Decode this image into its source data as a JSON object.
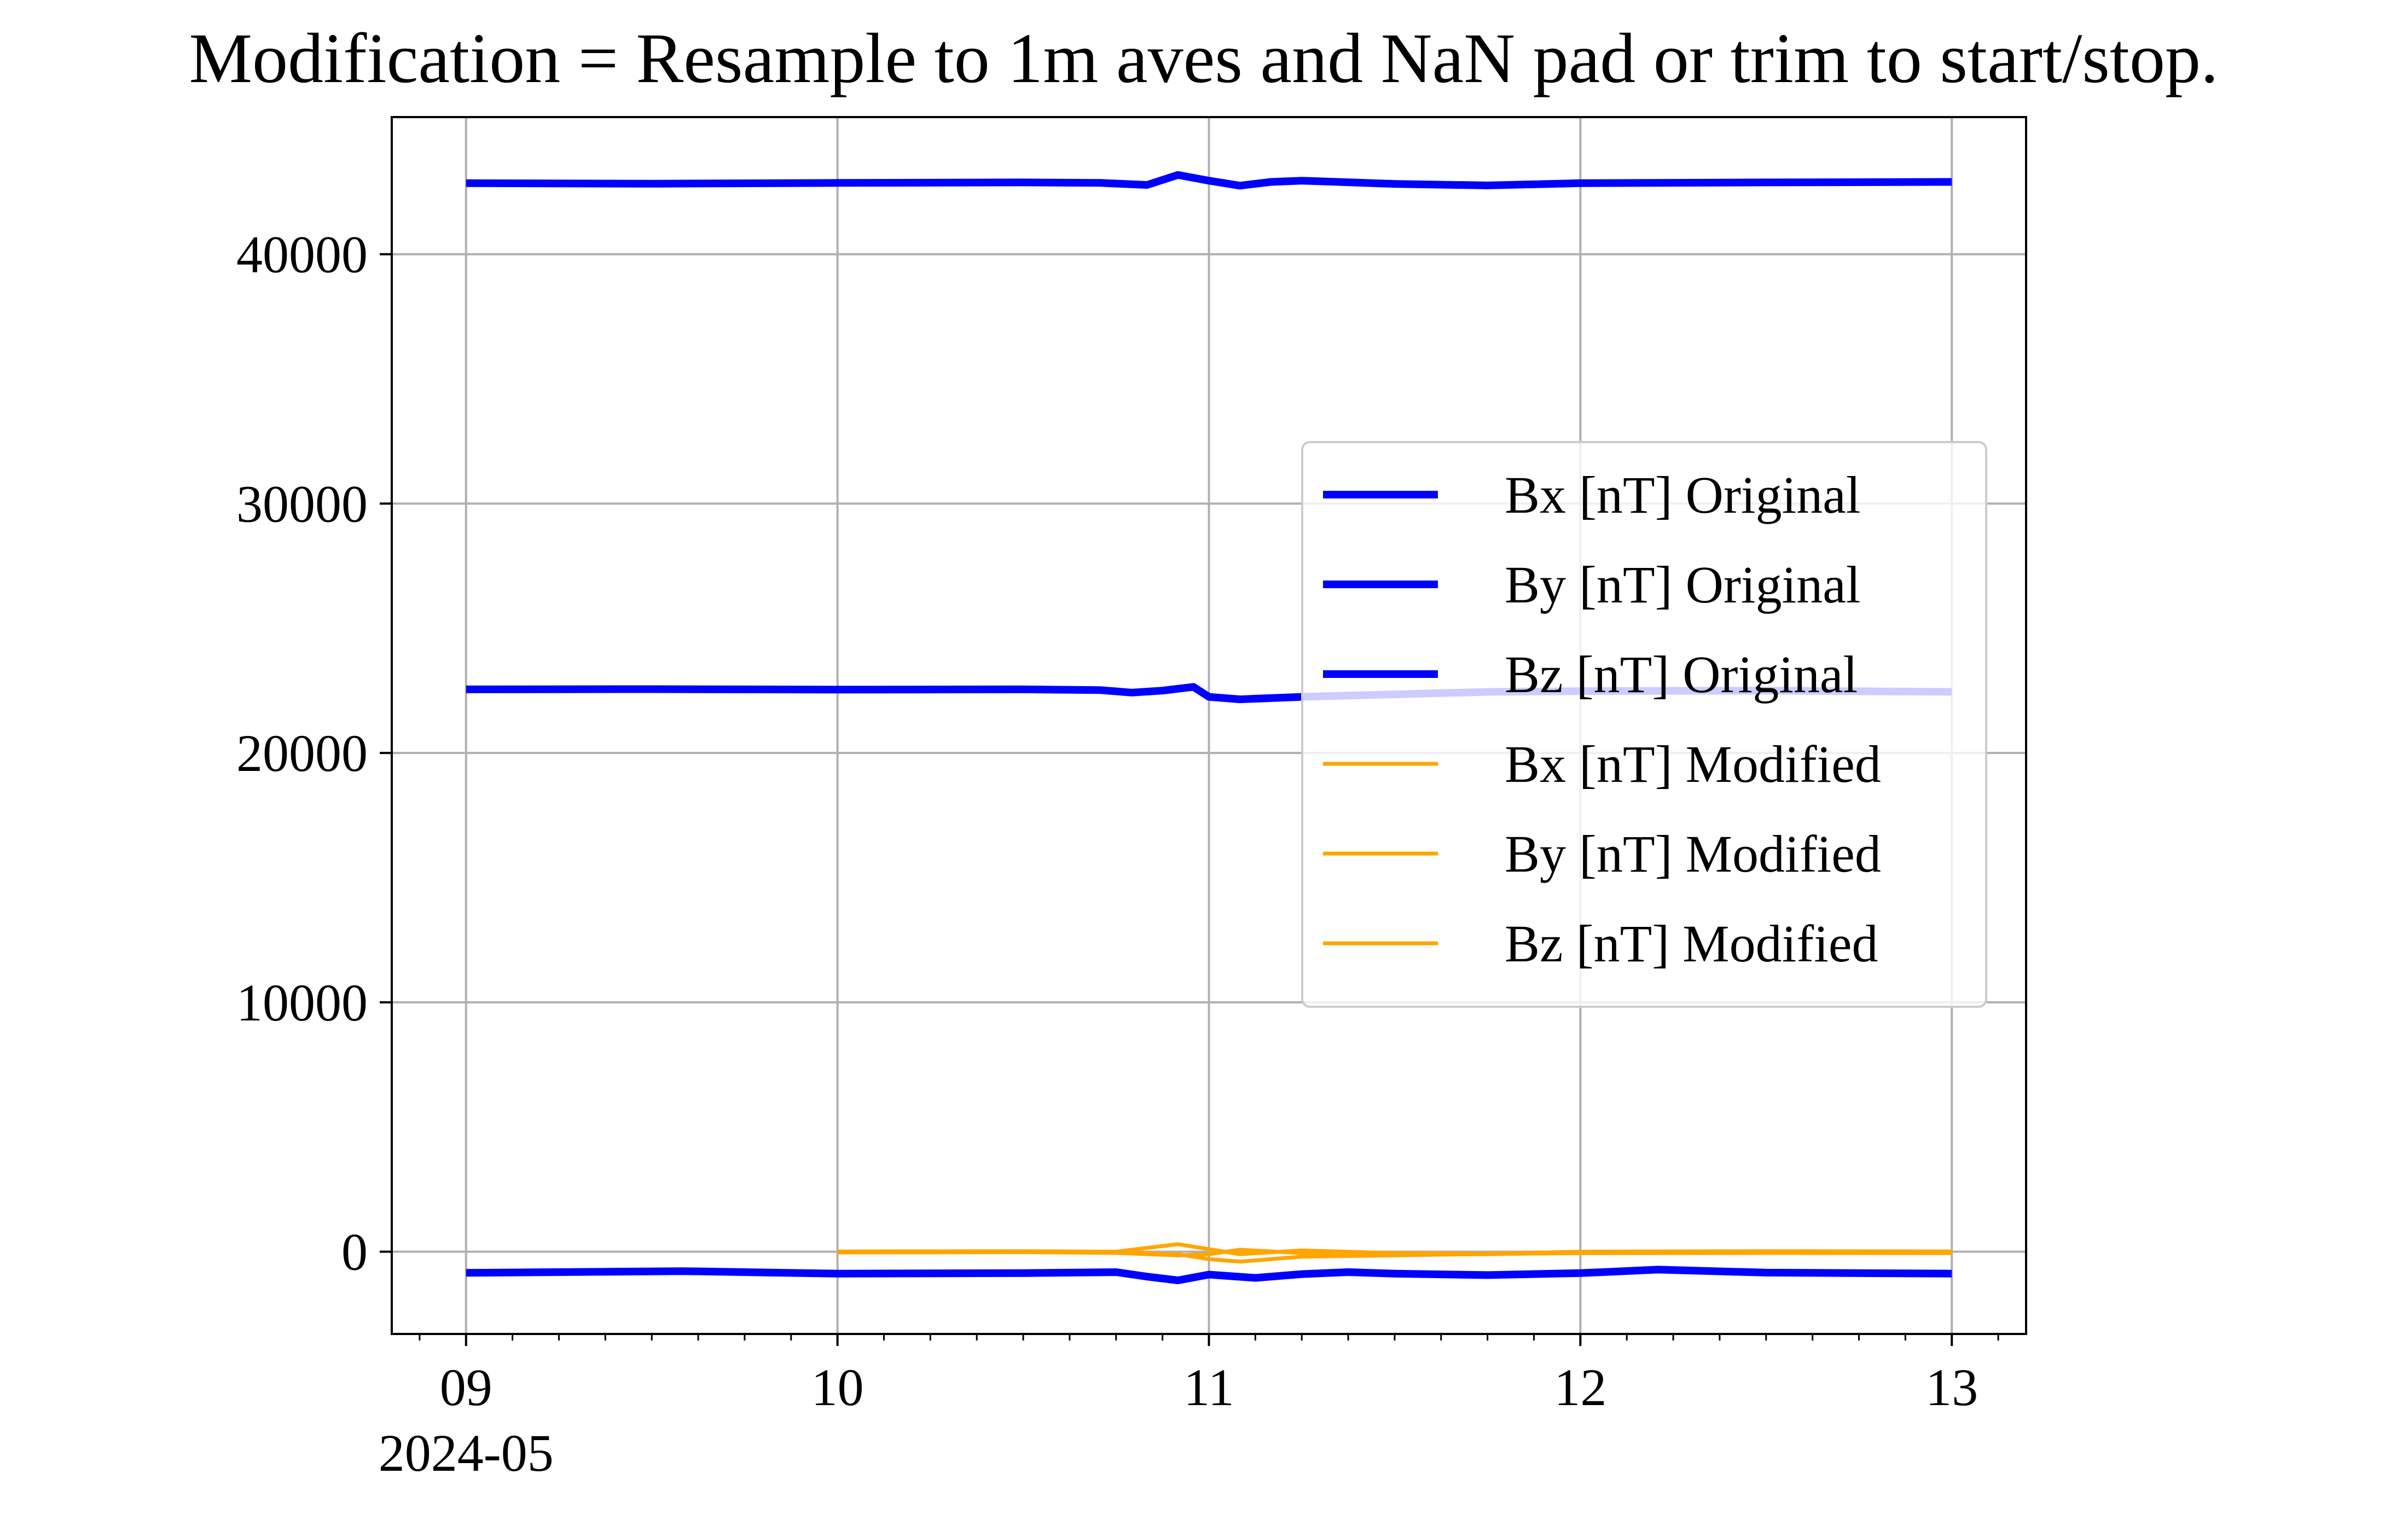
{
  "chart_data": {
    "type": "line",
    "title": "Modification = Resample to 1m aves and NaN pad or trim to start/stop.",
    "xlabel": "",
    "ylabel": "",
    "xlim": [
      "2024-05-08T19:12",
      "2024-05-13T04:48"
    ],
    "ylim": [
      -3300,
      45500
    ],
    "x_ticks": [
      {
        "value": "2024-05-09",
        "label": "09",
        "sublabel": "2024-05"
      },
      {
        "value": "2024-05-10",
        "label": "10",
        "sublabel": ""
      },
      {
        "value": "2024-05-11",
        "label": "11",
        "sublabel": ""
      },
      {
        "value": "2024-05-12",
        "label": "12",
        "sublabel": ""
      },
      {
        "value": "2024-05-13",
        "label": "13",
        "sublabel": ""
      }
    ],
    "y_ticks": [
      {
        "value": 0,
        "label": "0"
      },
      {
        "value": 10000,
        "label": "10000"
      },
      {
        "value": 20000,
        "label": "20000"
      },
      {
        "value": 30000,
        "label": "30000"
      },
      {
        "value": 40000,
        "label": "40000"
      }
    ],
    "grid": true,
    "legend_position": "center-right",
    "series": [
      {
        "name": "Bx [nT] Original",
        "color": "#0000ff",
        "line_width": "thick",
        "x": [
          "2024-05-09T00:00",
          "2024-05-09T12:00",
          "2024-05-10T00:00",
          "2024-05-10T12:00",
          "2024-05-10T17:00",
          "2024-05-10T20:00",
          "2024-05-10T22:00",
          "2024-05-11T00:00",
          "2024-05-11T02:00",
          "2024-05-11T04:00",
          "2024-05-11T06:00",
          "2024-05-11T12:00",
          "2024-05-11T18:00",
          "2024-05-12T00:00",
          "2024-05-12T12:00",
          "2024-05-13T00:00"
        ],
        "y": [
          42850,
          42830,
          42860,
          42880,
          42860,
          42780,
          43180,
          42950,
          42750,
          42900,
          42950,
          42820,
          42760,
          42850,
          42880,
          42900
        ]
      },
      {
        "name": "By [nT] Original",
        "color": "#0000ff",
        "line_width": "thick",
        "x": [
          "2024-05-09T00:00",
          "2024-05-09T12:00",
          "2024-05-10T00:00",
          "2024-05-10T12:00",
          "2024-05-10T17:00",
          "2024-05-10T19:00",
          "2024-05-10T21:00",
          "2024-05-10T23:00",
          "2024-05-11T00:00",
          "2024-05-11T02:00",
          "2024-05-11T06:00",
          "2024-05-11T12:00",
          "2024-05-11T18:00",
          "2024-05-12T00:00",
          "2024-05-12T12:00",
          "2024-05-13T00:00"
        ],
        "y": [
          22550,
          22560,
          22540,
          22550,
          22520,
          22420,
          22500,
          22650,
          22250,
          22150,
          22250,
          22350,
          22450,
          22480,
          22500,
          22450
        ]
      },
      {
        "name": "Bz [nT] Original",
        "color": "#0000ff",
        "line_width": "thick",
        "x": [
          "2024-05-09T00:00",
          "2024-05-09T14:00",
          "2024-05-10T00:00",
          "2024-05-10T12:00",
          "2024-05-10T18:00",
          "2024-05-10T20:00",
          "2024-05-10T22:00",
          "2024-05-11T00:00",
          "2024-05-11T03:00",
          "2024-05-11T06:00",
          "2024-05-11T09:00",
          "2024-05-11T12:00",
          "2024-05-11T18:00",
          "2024-05-12T00:00",
          "2024-05-12T05:00",
          "2024-05-12T12:00",
          "2024-05-13T00:00"
        ],
        "y": [
          -850,
          -780,
          -880,
          -860,
          -820,
          -1000,
          -1150,
          -920,
          -1050,
          -900,
          -820,
          -880,
          -940,
          -860,
          -720,
          -840,
          -880
        ]
      },
      {
        "name": "Bx [nT] Modified",
        "color": "#ffa500",
        "line_width": "thin",
        "x": [
          "2024-05-10T00:00",
          "2024-05-10T12:00",
          "2024-05-10T18:00",
          "2024-05-10T22:00",
          "2024-05-11T00:00",
          "2024-05-11T02:00",
          "2024-05-11T06:00",
          "2024-05-11T12:00",
          "2024-05-11T18:00",
          "2024-05-12T00:00",
          "2024-05-12T12:00",
          "2024-05-13T00:00"
        ],
        "y": [
          10,
          20,
          0,
          300,
          100,
          -100,
          50,
          -60,
          -80,
          0,
          20,
          10
        ]
      },
      {
        "name": "By [nT] Modified",
        "color": "#ffa500",
        "line_width": "thin",
        "x": [
          "2024-05-10T00:00",
          "2024-05-10T12:00",
          "2024-05-10T18:00",
          "2024-05-10T22:00",
          "2024-05-11T00:00",
          "2024-05-11T02:00",
          "2024-05-11T06:00",
          "2024-05-11T12:00",
          "2024-05-11T18:00",
          "2024-05-12T00:00",
          "2024-05-12T12:00",
          "2024-05-13T00:00"
        ],
        "y": [
          -5,
          -10,
          -30,
          -100,
          -300,
          -400,
          -200,
          -150,
          -90,
          -60,
          -50,
          -60
        ]
      },
      {
        "name": "Bz [nT] Modified",
        "color": "#ffa500",
        "line_width": "thin",
        "x": [
          "2024-05-10T00:00",
          "2024-05-10T12:00",
          "2024-05-10T18:00",
          "2024-05-10T22:00",
          "2024-05-11T00:00",
          "2024-05-11T02:00",
          "2024-05-11T06:00",
          "2024-05-11T12:00",
          "2024-05-11T18:00",
          "2024-05-12T00:00",
          "2024-05-12T12:00",
          "2024-05-13T00:00"
        ],
        "y": [
          -30,
          -20,
          -50,
          -150,
          -100,
          80,
          -60,
          -120,
          -100,
          -40,
          -20,
          -30
        ]
      }
    ]
  }
}
